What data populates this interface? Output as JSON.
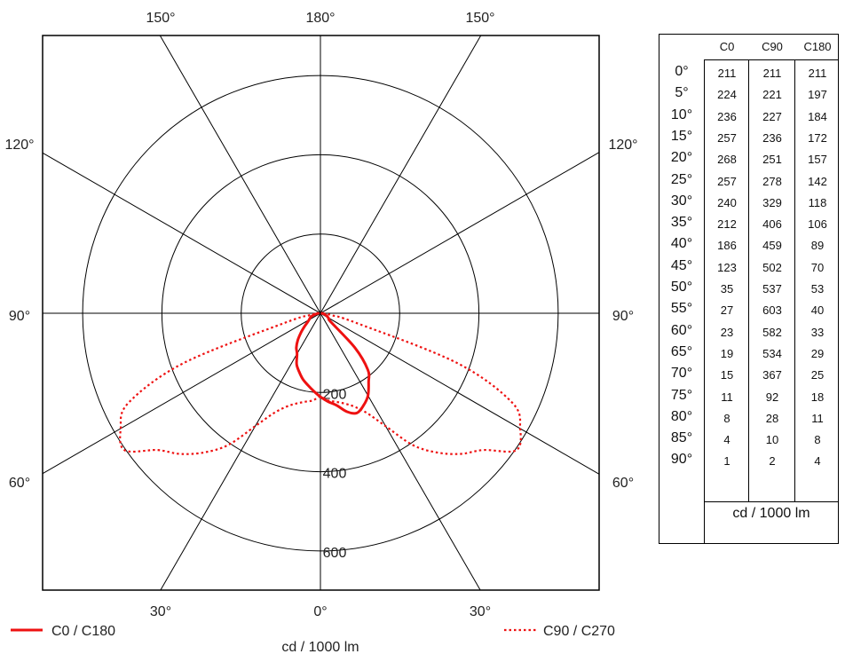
{
  "chart_data": {
    "type": "polar",
    "title": "",
    "unit_label": "cd / 1000 lm",
    "radial_ticks": [
      200,
      400,
      600
    ],
    "radial_max": 700,
    "angle_labels": {
      "top": [
        "150°",
        "180°",
        "150°"
      ],
      "left": [
        "120°",
        "90°",
        "60°"
      ],
      "right": [
        "120°",
        "90°",
        "60°"
      ],
      "bottom": [
        "30°",
        "0°",
        "30°"
      ]
    },
    "grid": true,
    "angles": [
      0,
      5,
      10,
      15,
      20,
      25,
      30,
      35,
      40,
      45,
      50,
      55,
      60,
      65,
      70,
      75,
      80,
      85,
      90
    ],
    "series": [
      {
        "name": "C0 / C180",
        "style": "solid",
        "color": "#ee1111",
        "right_plane": "C0",
        "left_plane": "C180"
      },
      {
        "name": "C90 / C270",
        "style": "dotted",
        "color": "#ee1111",
        "right_plane": "C90",
        "left_plane": "C90"
      }
    ],
    "table": {
      "columns": [
        "C0",
        "C90",
        "C180"
      ],
      "row_labels": [
        "0°",
        "5°",
        "10°",
        "15°",
        "20°",
        "25°",
        "30°",
        "35°",
        "40°",
        "45°",
        "50°",
        "55°",
        "60°",
        "65°",
        "70°",
        "75°",
        "80°",
        "85°",
        "90°"
      ],
      "C0": [
        211,
        224,
        236,
        257,
        268,
        257,
        240,
        212,
        186,
        123,
        35,
        27,
        23,
        19,
        15,
        11,
        8,
        4,
        1
      ],
      "C90": [
        211,
        221,
        227,
        236,
        251,
        278,
        329,
        406,
        459,
        502,
        537,
        603,
        582,
        534,
        367,
        92,
        28,
        10,
        2
      ],
      "C180": [
        211,
        197,
        184,
        172,
        157,
        142,
        118,
        106,
        89,
        70,
        53,
        40,
        33,
        29,
        25,
        18,
        11,
        8,
        4
      ],
      "unit_label": "cd / 1000 lm"
    },
    "legend": {
      "placement": "bottom"
    }
  }
}
